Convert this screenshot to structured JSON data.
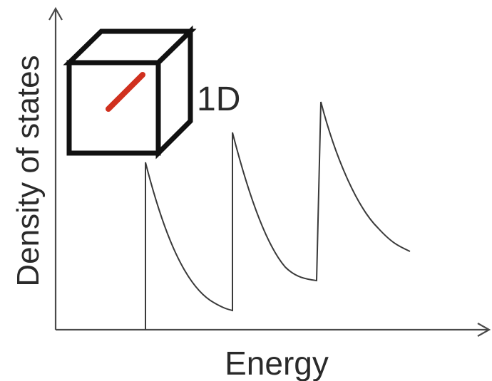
{
  "axes": {
    "x_label": "Energy",
    "y_label": "Density of states"
  },
  "inset": {
    "label": "1D"
  }
}
